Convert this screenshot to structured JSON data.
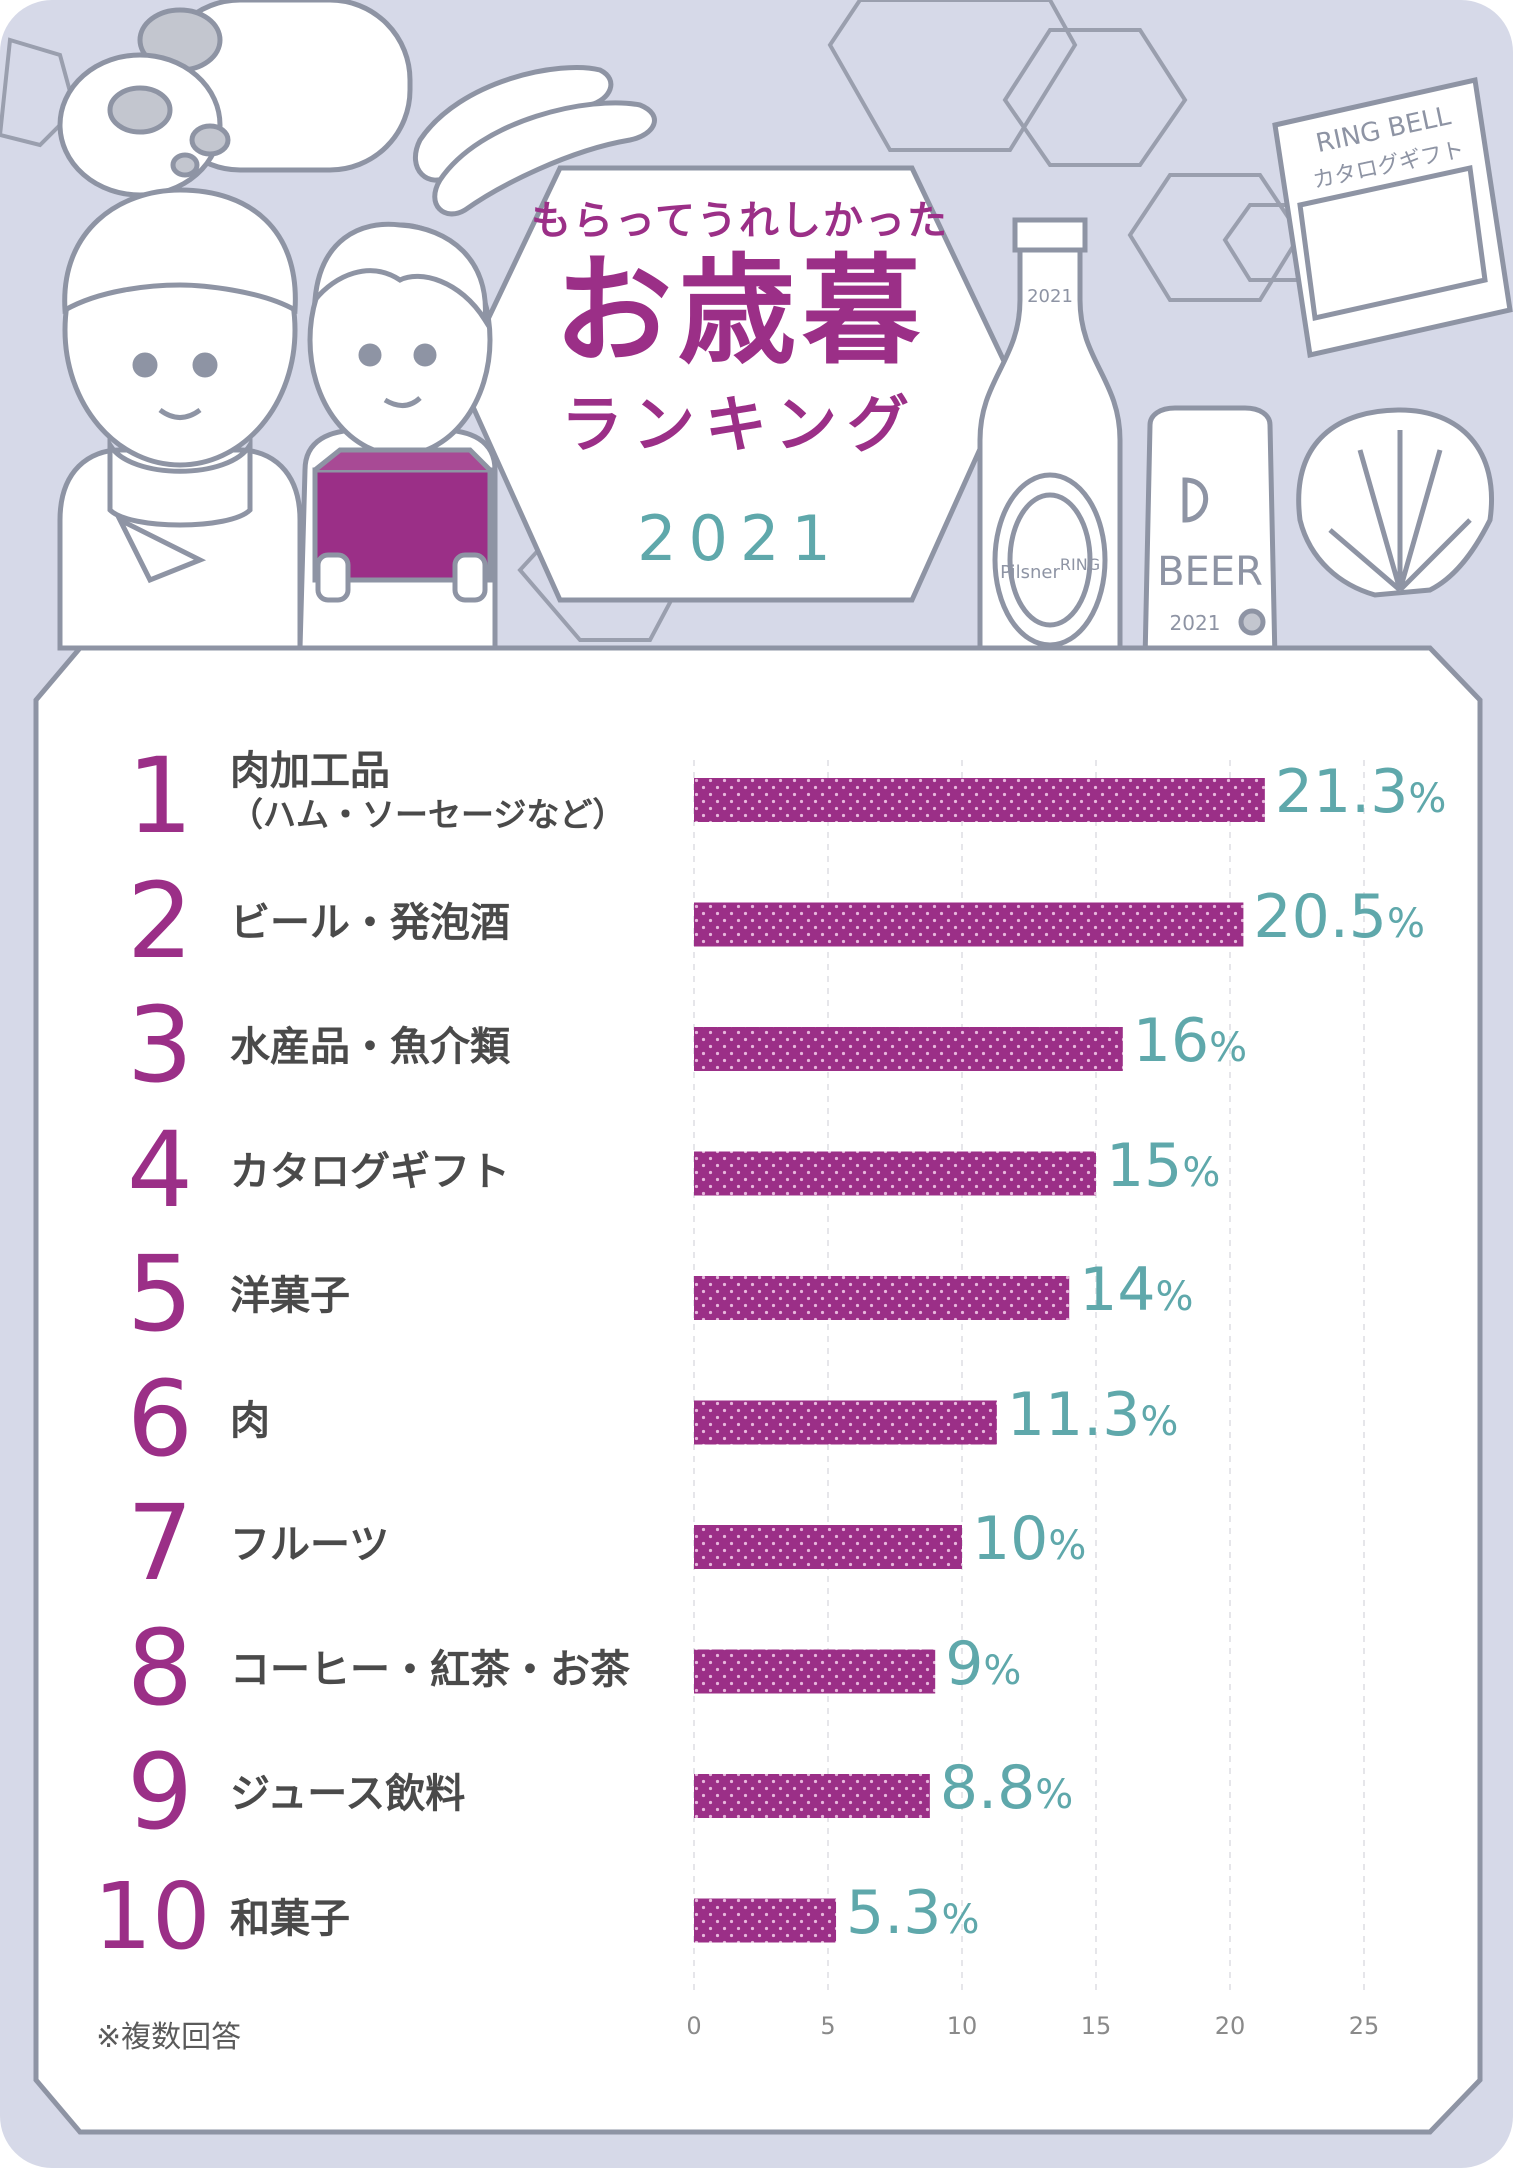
{
  "title": {
    "line1": "もらってうれしかった",
    "main": "お歳暮",
    "line2": "ランキング",
    "year": "2021"
  },
  "illustration": {
    "catalog_line1": "RING BELL",
    "catalog_line2": "カタログギフト",
    "bottle_year": "2021",
    "bottle_label_1": "Pilsner",
    "bottle_label_2": "RING",
    "can_text": "BEER",
    "can_year": "2021"
  },
  "colors": {
    "bar": "#9b2f87",
    "value_text": "#5fa8ab",
    "rank_text": "#9b2f87",
    "background": "#d6d9e8"
  },
  "chart_data": {
    "type": "bar",
    "orientation": "horizontal",
    "categories": [
      "肉加工品（ハム・ソーセージなど）",
      "ビール・発泡酒",
      "水産品・魚介類",
      "カタログギフト",
      "洋菓子",
      "肉",
      "フルーツ",
      "コーヒー・紅茶・お茶",
      "ジュース飲料",
      "和菓子"
    ],
    "values": [
      21.3,
      20.5,
      16,
      15,
      14,
      11.3,
      10,
      9,
      8.8,
      5.3
    ],
    "xlim": [
      0,
      25
    ],
    "xticks": [
      "0",
      "5",
      "10",
      "15",
      "20",
      "25"
    ],
    "grid": true,
    "legend": "none"
  },
  "ranking": [
    {
      "rank": "1",
      "label": "肉加工品",
      "sub": "（ハム・ソーセージなど）",
      "value_num": "21.3",
      "unit": "%"
    },
    {
      "rank": "2",
      "label": "ビール・発泡酒",
      "sub": "",
      "value_num": "20.5",
      "unit": "%"
    },
    {
      "rank": "3",
      "label": "水産品・魚介類",
      "sub": "",
      "value_num": "16",
      "unit": "%"
    },
    {
      "rank": "4",
      "label": "カタログギフト",
      "sub": "",
      "value_num": "15",
      "unit": "%"
    },
    {
      "rank": "5",
      "label": "洋菓子",
      "sub": "",
      "value_num": "14",
      "unit": "%"
    },
    {
      "rank": "6",
      "label": "肉",
      "sub": "",
      "value_num": "11.3",
      "unit": "%"
    },
    {
      "rank": "7",
      "label": "フルーツ",
      "sub": "",
      "value_num": "10",
      "unit": "%"
    },
    {
      "rank": "8",
      "label": "コーヒー・紅茶・お茶",
      "sub": "",
      "value_num": "9",
      "unit": "%"
    },
    {
      "rank": "9",
      "label": "ジュース飲料",
      "sub": "",
      "value_num": "8.8",
      "unit": "%"
    },
    {
      "rank": "10",
      "label": "和菓子",
      "sub": "",
      "value_num": "5.3",
      "unit": "%"
    }
  ],
  "footnote": "※複数回答"
}
